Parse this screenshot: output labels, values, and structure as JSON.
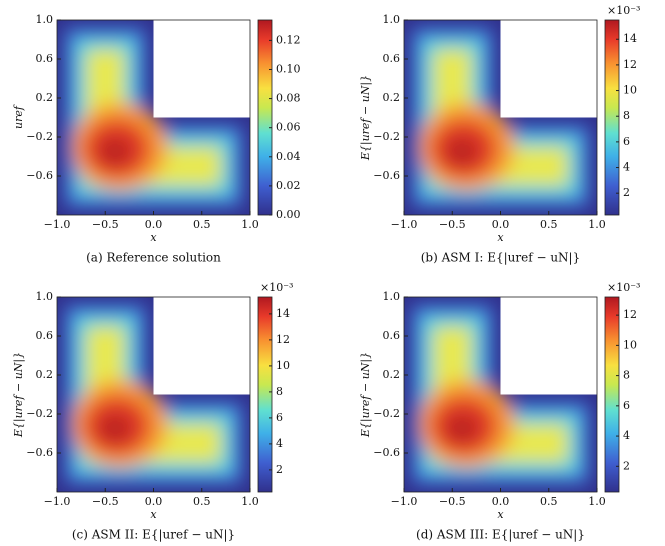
{
  "chart_data": [
    {
      "type": "heatmap",
      "caption": "(a) Reference solution",
      "xlabel": "x",
      "ylabel": "uref",
      "xlim": [
        -1,
        1
      ],
      "ylim": [
        -1,
        1
      ],
      "xticks": [
        {
          "value": -1,
          "label": "−1.0"
        },
        {
          "value": -0.5,
          "label": "−0.5"
        },
        {
          "value": 0,
          "label": "0.0"
        },
        {
          "value": 0.5,
          "label": "0.5"
        },
        {
          "value": 1,
          "label": "1.0"
        }
      ],
      "yticks": [
        {
          "value": 1,
          "label": "1.0"
        },
        {
          "value": 0.6,
          "label": "0.6"
        },
        {
          "value": 0.2,
          "label": "0.2"
        },
        {
          "value": -0.2,
          "label": "−0.2"
        },
        {
          "value": -0.6,
          "label": "−0.6"
        }
      ],
      "clim": [
        0,
        0.134
      ],
      "cticks": [
        {
          "value": 0,
          "label": "0.00"
        },
        {
          "value": 0.02,
          "label": "0.02"
        },
        {
          "value": 0.04,
          "label": "0.04"
        },
        {
          "value": 0.06,
          "label": "0.06"
        },
        {
          "value": 0.08,
          "label": "0.08"
        },
        {
          "value": 0.1,
          "label": "0.10"
        },
        {
          "value": 0.12,
          "label": "0.12"
        }
      ]
    },
    {
      "type": "heatmap",
      "caption": "(b) ASM I: E{|uref − uN|}",
      "xlabel": "x",
      "ylabel": "E{|uref − uN|}",
      "xlim": [
        -1,
        1
      ],
      "ylim": [
        -1,
        1
      ],
      "xticks": [
        {
          "value": -1,
          "label": "−1.0"
        },
        {
          "value": -0.5,
          "label": "−0.5"
        },
        {
          "value": 0,
          "label": "0.0"
        },
        {
          "value": 0.5,
          "label": "0.5"
        },
        {
          "value": 1,
          "label": "1.0"
        }
      ],
      "yticks": [
        {
          "value": 1,
          "label": "1.0"
        },
        {
          "value": 0.6,
          "label": "0.6"
        },
        {
          "value": 0.2,
          "label": "0.2"
        },
        {
          "value": -0.2,
          "label": "−0.2"
        },
        {
          "value": -0.6,
          "label": "−0.6"
        }
      ],
      "clim": [
        0.3,
        15.5
      ],
      "cmultiplier": "×10⁻³",
      "cticks": [
        2,
        4,
        6,
        8,
        10,
        12,
        14
      ]
    },
    {
      "type": "heatmap",
      "caption": "(c) ASM II: E{|uref − uN|}",
      "xlabel": "x",
      "ylabel": "E{|uref − uN|}",
      "xlim": [
        -1,
        1
      ],
      "ylim": [
        -1,
        1
      ],
      "xticks": [
        {
          "value": -1,
          "label": "−1.0"
        },
        {
          "value": -0.5,
          "label": "−0.5"
        },
        {
          "value": 0,
          "label": "0.0"
        },
        {
          "value": 0.5,
          "label": "0.5"
        },
        {
          "value": 1,
          "label": "1.0"
        }
      ],
      "yticks": [
        {
          "value": 1,
          "label": "1.0"
        },
        {
          "value": 0.6,
          "label": "0.6"
        },
        {
          "value": 0.2,
          "label": "0.2"
        },
        {
          "value": -0.2,
          "label": "−0.2"
        },
        {
          "value": -0.6,
          "label": "−0.6"
        }
      ],
      "clim": [
        0.3,
        15.3
      ],
      "cmultiplier": "×10⁻³",
      "cticks": [
        2,
        4,
        6,
        8,
        10,
        12,
        14
      ]
    },
    {
      "type": "heatmap",
      "caption": "(d) ASM III: E{|uref − uN|}",
      "xlabel": "x",
      "ylabel": "E{|uref − uN|}",
      "xlim": [
        -1,
        1
      ],
      "ylim": [
        -1,
        1
      ],
      "xticks": [
        {
          "value": -1,
          "label": "−1.0"
        },
        {
          "value": -0.5,
          "label": "−0.5"
        },
        {
          "value": 0,
          "label": "0.0"
        },
        {
          "value": 0.5,
          "label": "0.5"
        },
        {
          "value": 1,
          "label": "1.0"
        }
      ],
      "yticks": [
        {
          "value": 1,
          "label": "1.0"
        },
        {
          "value": 0.6,
          "label": "0.6"
        },
        {
          "value": 0.2,
          "label": "0.2"
        },
        {
          "value": -0.2,
          "label": "−0.2"
        },
        {
          "value": -0.6,
          "label": "−0.6"
        }
      ],
      "clim": [
        0.3,
        13.2
      ],
      "cmultiplier": "×10⁻³",
      "cticks": [
        2,
        4,
        6,
        8,
        10,
        12
      ]
    }
  ]
}
